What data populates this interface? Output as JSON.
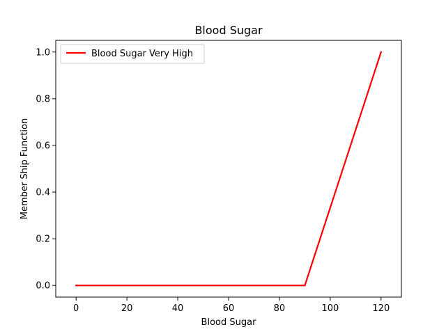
{
  "chart_data": {
    "type": "line",
    "title": "Blood Sugar",
    "xlabel": "Blood Sugar",
    "ylabel": "Member Ship Function",
    "xlim": [
      -8,
      128
    ],
    "ylim": [
      -0.05,
      1.05
    ],
    "xticks": [
      0,
      20,
      40,
      60,
      80,
      100,
      120
    ],
    "yticks": [
      0.0,
      0.2,
      0.4,
      0.6,
      0.8,
      1.0
    ],
    "xtick_labels": [
      "0",
      "20",
      "40",
      "60",
      "80",
      "100",
      "120"
    ],
    "ytick_labels": [
      "0.0",
      "0.2",
      "0.4",
      "0.6",
      "0.8",
      "1.0"
    ],
    "grid": false,
    "legend_position": "top-left",
    "series": [
      {
        "name": "Blood Sugar Very High",
        "color": "#ff0000",
        "x": [
          0,
          90,
          120
        ],
        "y": [
          0,
          0,
          1
        ]
      }
    ]
  }
}
